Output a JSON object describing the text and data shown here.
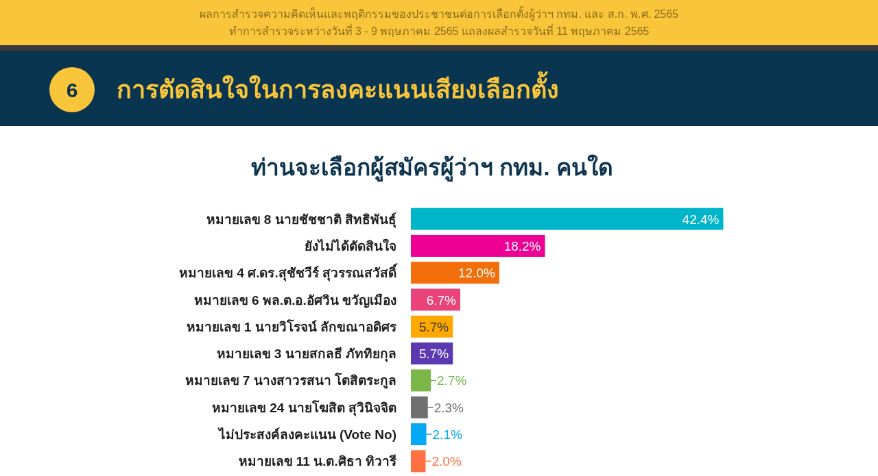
{
  "chart_data": {
    "type": "bar",
    "orientation": "horizontal",
    "title": "ท่านจะเลือกผู้สมัครผู้ว่าฯ กทม. คนใด",
    "annotations": [
      "ผลการสำรวจความคิดเห็นและพฤติกรรมของประชาชนต่อการเลือกตั้งผู้ว่าฯ กทม. และ ส.ก. พ.ศ. 2565",
      "ทำการสำรวจระหว่างวันที่ 3 - 9 พฤษภาคม 2565  แถลงผลสำรวจวันที่ 11 พฤษภาคม 2565",
      "6",
      "การตัดสินใจในการลงคะแนนเสียงเลือกตั้ง"
    ],
    "categories": [
      "หมายเลข 8 นายชัชชาติ สิทธิพันธุ์",
      "ยังไม่ได้ตัดสินใจ",
      "หมายเลข 4 ศ.ดร.สุชัชวีร์ สุวรรณสวัสดิ์",
      "หมายเลข 6 พล.ต.อ.อัศวิน ขวัญเมือง",
      "หมายเลข 1 นายวิโรจน์ ลักขณาอดิศร",
      "หมายเลข 3 นายสกลธี ภัททิยกุล",
      "หมายเลข 7 นางสาวรสนา โตสิตระกูล",
      "หมายเลข 24 นายโฆสิต สุวินิจจิต",
      "ไม่ประสงค์ลงคะแนน (Vote No)",
      "หมายเลข 11 น.ต.ศิธา ทิวารี"
    ],
    "values": [
      42.4,
      18.2,
      12.0,
      6.7,
      5.7,
      5.7,
      2.7,
      2.3,
      2.1,
      2.0
    ],
    "colors": [
      "#00b5c9",
      "#ee0094",
      "#f26f0c",
      "#e9437a",
      "#ffa800",
      "#5b39b0",
      "#7ab648",
      "#707070",
      "#03a9f4",
      "#ff7043"
    ],
    "value_labels": [
      "42.4%",
      "18.2%",
      "12.0%",
      "6.7%",
      "5.7%",
      "5.7%",
      "2.7%",
      "2.3%",
      "2.1%",
      "2.0%"
    ]
  }
}
